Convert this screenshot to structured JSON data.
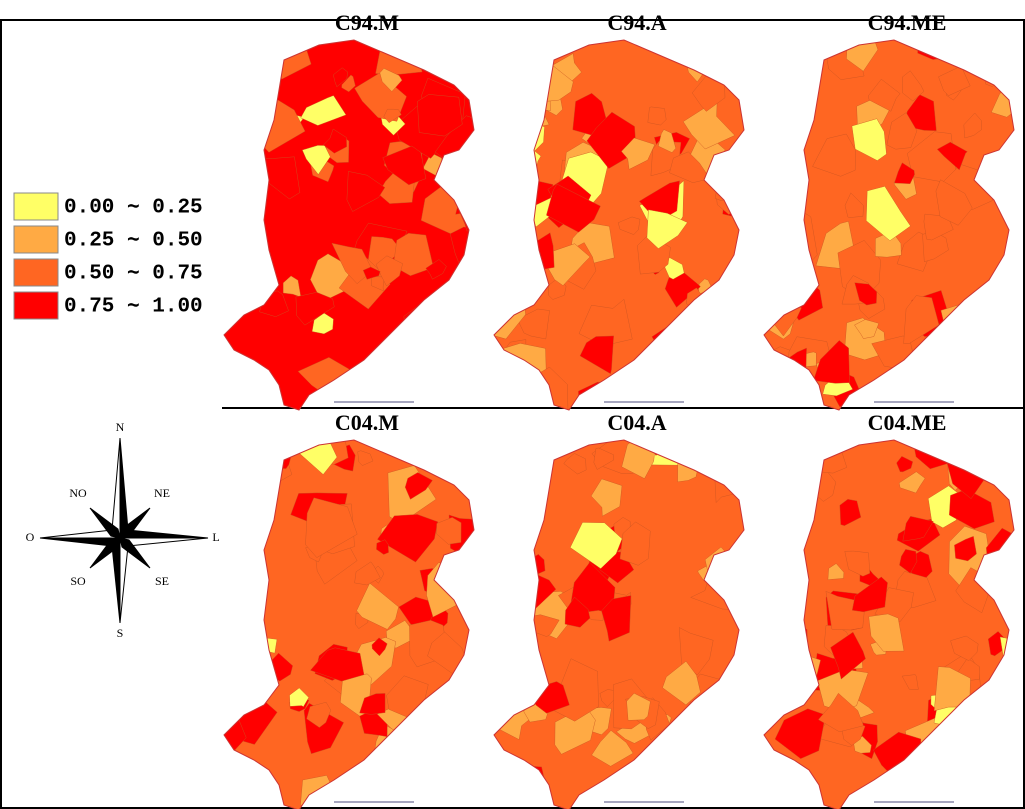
{
  "panels": [
    {
      "title": "C94.M"
    },
    {
      "title": "C94.A"
    },
    {
      "title": "C94.ME"
    },
    {
      "title": "C04.M"
    },
    {
      "title": "C04.A"
    },
    {
      "title": "C04.ME"
    }
  ],
  "legend": [
    {
      "label": "0.00 ∼ 0.25",
      "color": "#ffff66"
    },
    {
      "label": "0.25 ∼ 0.50",
      "color": "#ffaa44"
    },
    {
      "label": "0.50 ∼ 0.75",
      "color": "#ff6622"
    },
    {
      "label": "0.75 ∼ 1.00",
      "color": "#ff0000"
    }
  ],
  "compass": {
    "n": "N",
    "ne": "NE",
    "l": "L",
    "se": "SE",
    "s": "S",
    "so": "SO",
    "o": "O",
    "no": "NO"
  }
}
